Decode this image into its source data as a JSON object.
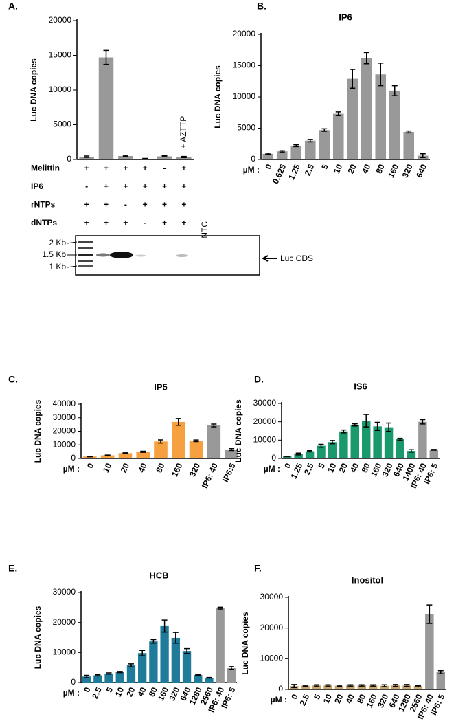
{
  "chart_data": [
    {
      "type": "bar",
      "panel": "A.",
      "ylabel": "Luc DNA copies",
      "categories": [
        null,
        null,
        null,
        null,
        null,
        null
      ],
      "values": [
        400,
        14700,
        500,
        100,
        450,
        350
      ],
      "errors": [
        100,
        1000,
        80,
        50,
        80,
        80
      ],
      "colors": [
        "#999999",
        "#999999",
        "#999999",
        "#999999",
        "#999999",
        "#999999"
      ],
      "ylim": [
        0,
        20000
      ],
      "yticks": [
        0,
        5000,
        10000,
        15000,
        20000
      ],
      "annotation": "+ AZTTP",
      "conditions": [
        {
          "label": "Melittin",
          "values": [
            "+",
            "+",
            "+",
            "+",
            "-",
            "+"
          ]
        },
        {
          "label": "IP6",
          "values": [
            "-",
            "+",
            "+",
            "+",
            "+",
            "+"
          ]
        },
        {
          "label": "rNTPs",
          "values": [
            "+",
            "+",
            "-",
            "+",
            "+",
            "+"
          ]
        },
        {
          "label": "dNTPs",
          "values": [
            "+",
            "+",
            "+",
            "-",
            "+",
            "+"
          ]
        }
      ],
      "ntc_label": "NTC",
      "gel_labels": [
        "2 Kb",
        "1.5 Kb",
        "1 Kb"
      ],
      "gel_annotation": "Luc CDS"
    },
    {
      "type": "bar",
      "panel": "B.",
      "title": "IP6",
      "ylabel": "Luc DNA copies",
      "xlabel": "µM :",
      "categories": [
        "0",
        "0.625",
        "1.25",
        "2.5",
        "5",
        "10",
        "20",
        "40",
        "80",
        "160",
        "320",
        "640"
      ],
      "values": [
        900,
        1300,
        2200,
        3000,
        4700,
        7300,
        12900,
        16200,
        13600,
        11000,
        4400,
        600
      ],
      "errors": [
        100,
        100,
        150,
        200,
        200,
        300,
        1500,
        900,
        1800,
        800,
        150,
        300
      ],
      "colors": [
        "#999999",
        "#999999",
        "#999999",
        "#999999",
        "#999999",
        "#999999",
        "#999999",
        "#999999",
        "#999999",
        "#999999",
        "#999999",
        "#999999"
      ],
      "ylim": [
        0,
        20000
      ],
      "yticks": [
        0,
        5000,
        10000,
        15000,
        20000
      ]
    },
    {
      "type": "bar",
      "panel": "C.",
      "title": "IP5",
      "ylabel": "Luc DNA copies",
      "xlabel": "µM :",
      "categories": [
        "0",
        "10",
        "20",
        "40",
        "80",
        "160",
        "320",
        "IP6: 40",
        "IP6:5"
      ],
      "values": [
        1400,
        2300,
        3900,
        4900,
        12500,
        26900,
        13000,
        24300,
        6500
      ],
      "errors": [
        200,
        200,
        200,
        400,
        1200,
        2500,
        600,
        1000,
        700
      ],
      "colors": [
        "#f6a03f",
        "#f6a03f",
        "#f6a03f",
        "#f6a03f",
        "#f6a03f",
        "#f6a03f",
        "#f6a03f",
        "#999999",
        "#999999"
      ],
      "ylim": [
        0,
        40000
      ],
      "yticks": [
        0,
        10000,
        20000,
        30000,
        40000
      ]
    },
    {
      "type": "bar",
      "panel": "D.",
      "title": "IS6",
      "ylabel": "Luc DNA copies",
      "xlabel": "µM :",
      "categories": [
        "0",
        "1.25",
        "2.5",
        "5",
        "10",
        "20",
        "40",
        "80",
        "160",
        "320",
        "640",
        "1400",
        "IP6: 40",
        "IP6: 5"
      ],
      "values": [
        1100,
        2400,
        3900,
        6900,
        8900,
        14700,
        18300,
        20600,
        17500,
        17000,
        10500,
        4100,
        20000,
        4700
      ],
      "errors": [
        100,
        500,
        300,
        800,
        900,
        800,
        600,
        3400,
        2200,
        2300,
        500,
        700,
        1200,
        200
      ],
      "colors": [
        "#1a9a6c",
        "#1a9a6c",
        "#1a9a6c",
        "#1a9a6c",
        "#1a9a6c",
        "#1a9a6c",
        "#1a9a6c",
        "#1a9a6c",
        "#1a9a6c",
        "#1a9a6c",
        "#1a9a6c",
        "#1a9a6c",
        "#999999",
        "#999999"
      ],
      "ylim": [
        0,
        30000
      ],
      "yticks": [
        0,
        10000,
        20000,
        30000
      ]
    },
    {
      "type": "bar",
      "panel": "E.",
      "title": "HCB",
      "ylabel": "Luc DNA copies",
      "xlabel": "µM :",
      "categories": [
        "0",
        "2.5",
        "5",
        "10",
        "20",
        "40",
        "80",
        "160",
        "320",
        "640",
        "1280",
        "2560",
        "IP6: 40",
        "IP6: 5"
      ],
      "values": [
        2000,
        2400,
        3000,
        3500,
        5700,
        9800,
        13700,
        18800,
        14900,
        10500,
        2500,
        1600,
        24800,
        4800
      ],
      "errors": [
        400,
        200,
        200,
        200,
        500,
        900,
        600,
        2000,
        1800,
        800,
        100,
        100,
        300,
        500
      ],
      "colors": [
        "#1e7b9a",
        "#1e7b9a",
        "#1e7b9a",
        "#1e7b9a",
        "#1e7b9a",
        "#1e7b9a",
        "#1e7b9a",
        "#1e7b9a",
        "#1e7b9a",
        "#1e7b9a",
        "#1e7b9a",
        "#1e7b9a",
        "#999999",
        "#999999"
      ],
      "ylim": [
        0,
        30000
      ],
      "yticks": [
        0,
        10000,
        20000,
        30000
      ]
    },
    {
      "type": "bar",
      "panel": "F.",
      "title": "Inositol",
      "ylabel": "Luc DNA copies",
      "xlabel": "µM :",
      "categories": [
        "0",
        "2.5",
        "5",
        "10",
        "20",
        "40",
        "80",
        "160",
        "320",
        "640",
        "1280",
        "2560",
        "IP6: 40",
        "IP6: 5"
      ],
      "values": [
        1100,
        1200,
        1300,
        1300,
        1200,
        1300,
        1300,
        1300,
        1200,
        1300,
        1300,
        1100,
        24500,
        5600
      ],
      "errors": [
        500,
        200,
        200,
        200,
        200,
        200,
        200,
        200,
        300,
        300,
        300,
        200,
        3000,
        500
      ],
      "colors": [
        "#c9a46a",
        "#c9a46a",
        "#c9a46a",
        "#c9a46a",
        "#c9a46a",
        "#c9a46a",
        "#c9a46a",
        "#c9a46a",
        "#c9a46a",
        "#c9a46a",
        "#c9a46a",
        "#c9a46a",
        "#999999",
        "#999999"
      ],
      "ylim": [
        0,
        30000
      ],
      "yticks": [
        0,
        10000,
        20000,
        30000
      ]
    }
  ]
}
